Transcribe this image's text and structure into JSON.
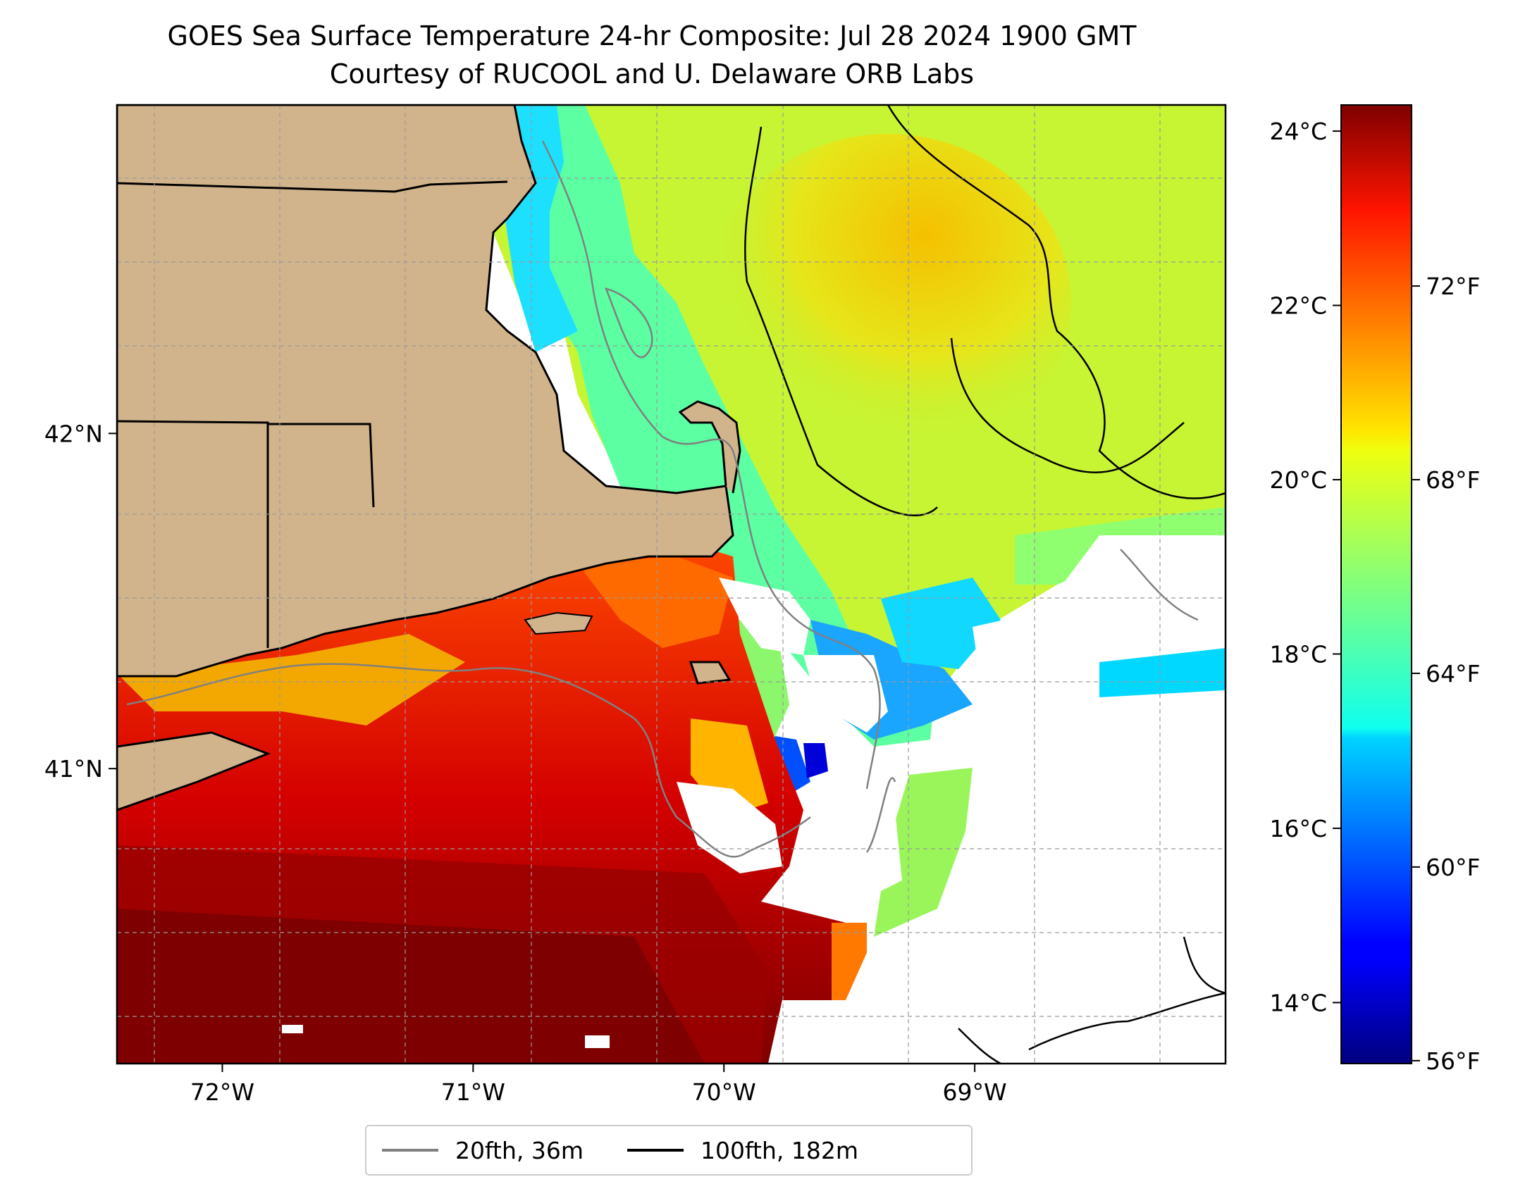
{
  "title": {
    "line1": "GOES Sea Surface Temperature 24-hr Composite: Jul 28 2024 1900 GMT",
    "line2": "Courtesy of RUCOOL and U. Delaware ORB Labs"
  },
  "map": {
    "projection": "PlateCarree",
    "lon_range": [
      -72.42,
      -68.0
    ],
    "lat_range": [
      40.12,
      42.98
    ],
    "land_color": "#d2b48c",
    "no_data_color": "#ffffff",
    "gridlines": true,
    "x_ticks": [
      {
        "value": -72,
        "label": "72°W"
      },
      {
        "value": -71,
        "label": "71°W"
      },
      {
        "value": -70,
        "label": "70°W"
      },
      {
        "value": -69,
        "label": "69°W"
      }
    ],
    "y_ticks": [
      {
        "value": 42,
        "label": "42°N"
      },
      {
        "value": 41,
        "label": "41°N"
      }
    ]
  },
  "colorbar": {
    "colormap": "jet",
    "range_c": [
      13.3,
      24.3
    ],
    "celsius_ticks": [
      {
        "value": 14,
        "label": "14°C"
      },
      {
        "value": 16,
        "label": "16°C"
      },
      {
        "value": 18,
        "label": "18°C"
      },
      {
        "value": 20,
        "label": "20°C"
      },
      {
        "value": 22,
        "label": "22°C"
      },
      {
        "value": 24,
        "label": "24°C"
      }
    ],
    "fahrenheit_ticks": [
      {
        "value": 56,
        "label": "56°F"
      },
      {
        "value": 60,
        "label": "60°F"
      },
      {
        "value": 64,
        "label": "64°F"
      },
      {
        "value": 68,
        "label": "68°F"
      },
      {
        "value": 72,
        "label": "72°F"
      }
    ]
  },
  "legend": {
    "items": [
      {
        "label": "20fth, 36m",
        "color": "#808080"
      },
      {
        "label": "100fth, 182m",
        "color": "#000000"
      }
    ]
  }
}
